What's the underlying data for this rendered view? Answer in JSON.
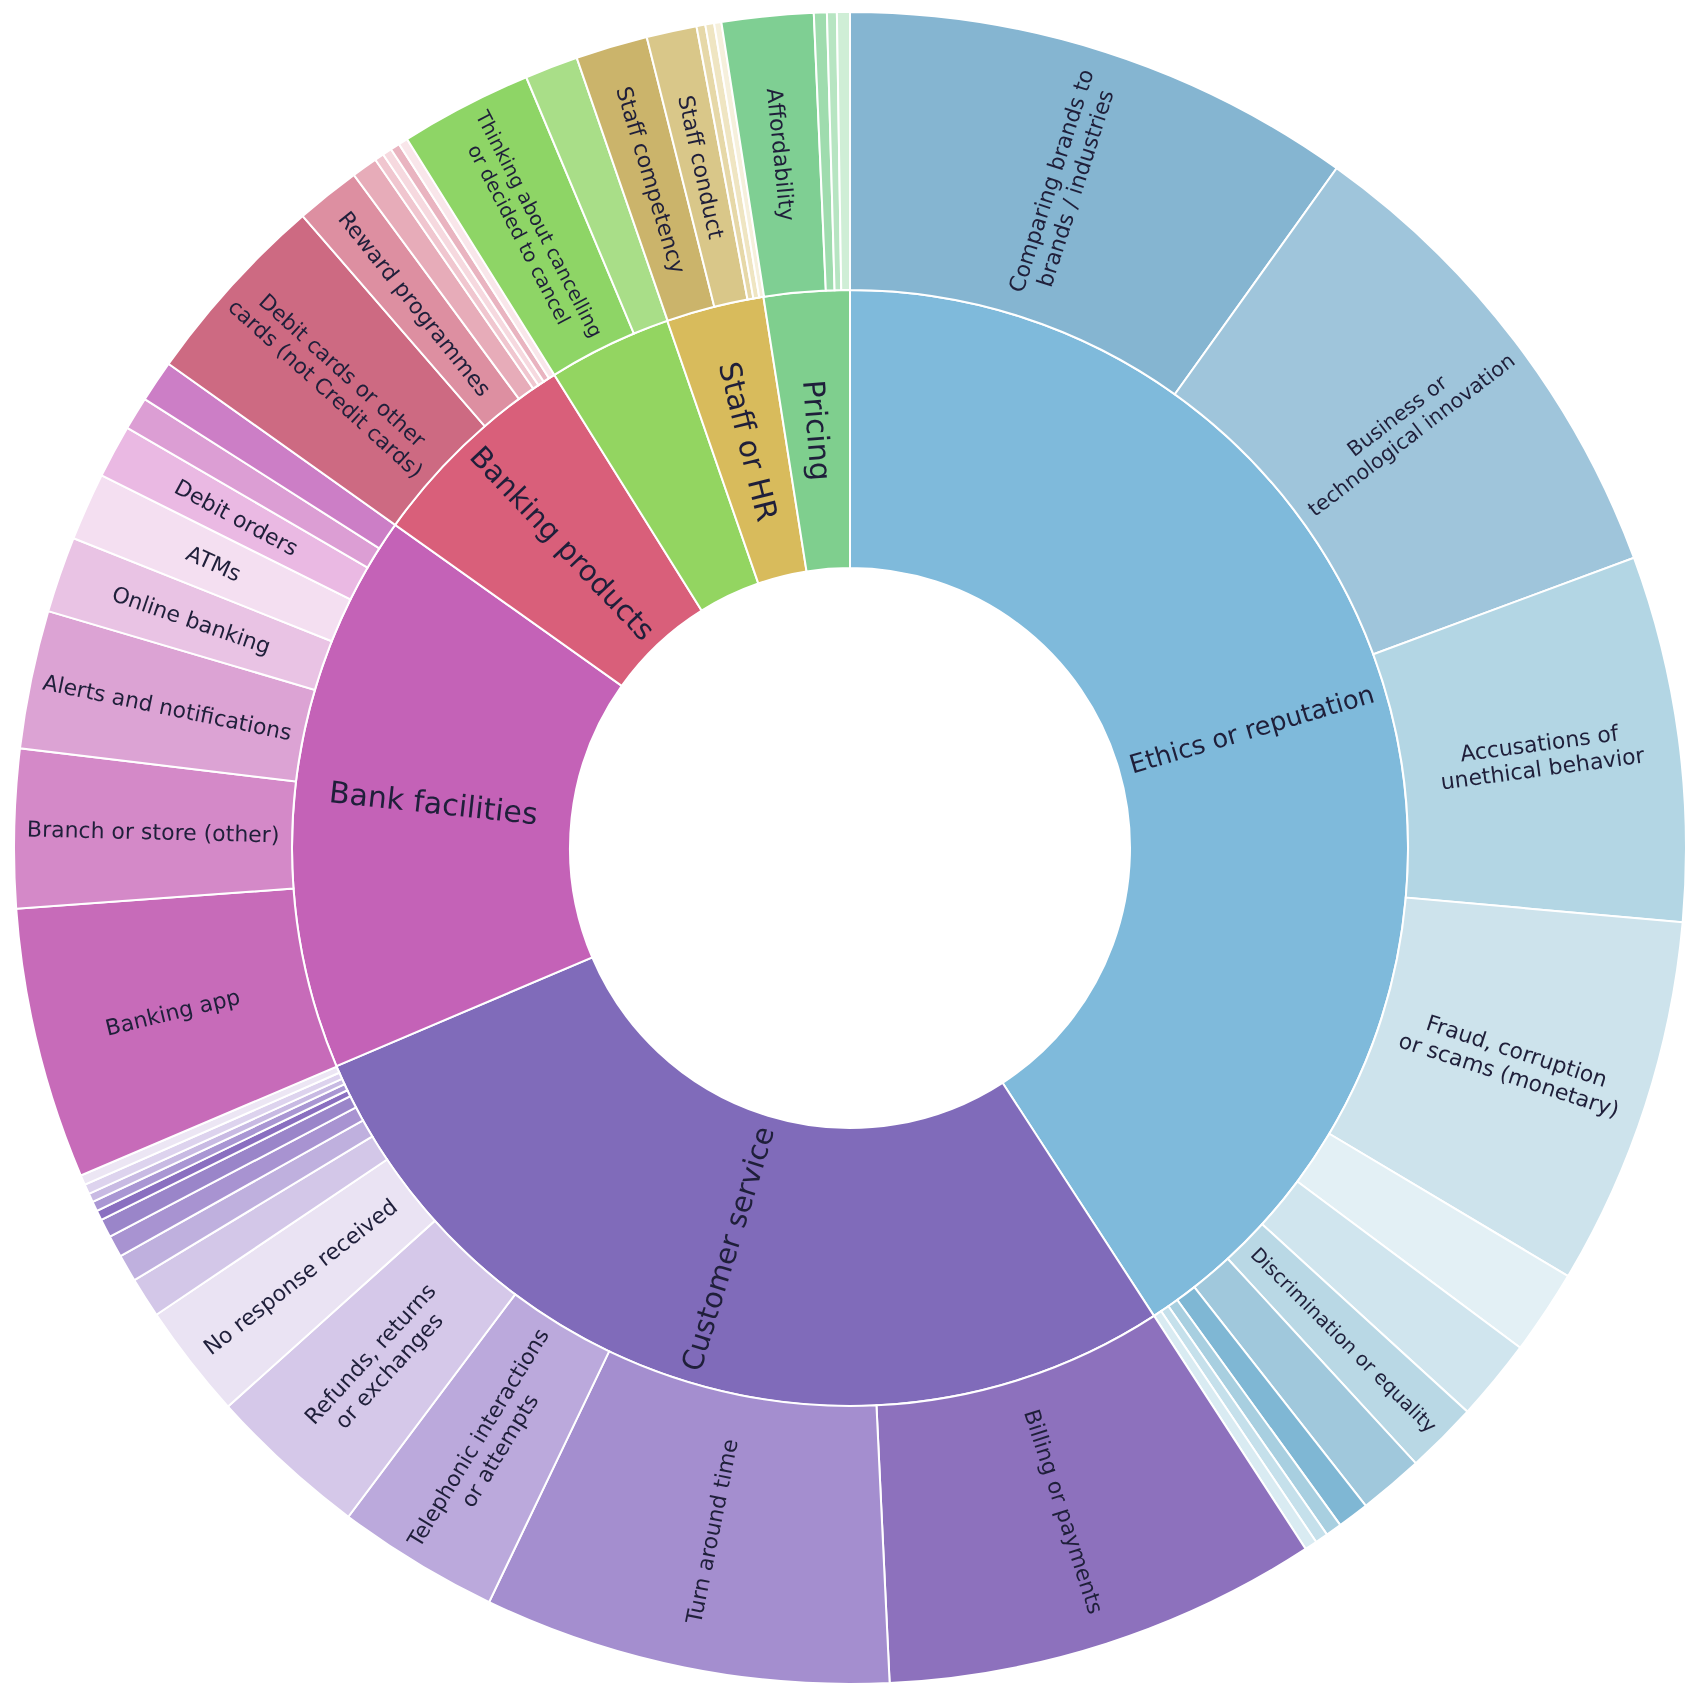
{
  "chart_data": [
    {
      "type": "donut",
      "categories": [
        "Ethics or reputation",
        "Customer service",
        "Bank facilities",
        "Banking products",
        null,
        "Staff or HR",
        "Pricing"
      ],
      "values": [
        40.83,
        27.78,
        16.22,
        6.28,
        3.58,
        2.83,
        2.48
      ],
      "colors": [
        "#7fbadb",
        "#806bba",
        "#c462b7",
        "#d95f7a",
        "#93d561",
        "#d8bb5c",
        "#7fcf8e"
      ]
    },
    {
      "type": "donut",
      "categories": [
        "Comparing brands to brands / industries",
        "Business or technological innovation",
        "Accusations of unethical behavior",
        "Fraud, corruption or scams (monetary)",
        null,
        null,
        "Discrimination or equality",
        null,
        null,
        null,
        null,
        null,
        "Billing or payments",
        "Turn around time",
        "Telephonic interactions or attempts",
        "Refunds, returns or exchanges",
        "No response received",
        null,
        null,
        null,
        null,
        null,
        null,
        null,
        null,
        null,
        "Banking app",
        "Branch or store (other)",
        "Alerts and notifications",
        "Online banking",
        "ATMs",
        "Debit orders",
        null,
        null,
        "Debit cards or other cards (not Credit cards)",
        "Reward programmes",
        null,
        null,
        null,
        null,
        null,
        "Thinking about cancelling or decided to cancel",
        null,
        "Staff competency",
        "Staff conduct",
        null,
        null,
        null,
        "Affordability",
        null,
        null,
        null
      ],
      "values": [
        9.89,
        9.47,
        7.06,
        7.14,
        1.64,
        1.58,
        1.39,
        1.25,
        0.61,
        0.31,
        0.25,
        0.24,
        8.42,
        7.86,
        3.14,
        3.11,
        2.22,
        0.78,
        0.53,
        0.42,
        0.36,
        0.19,
        0.19,
        0.17,
        0.19,
        0.19,
        5.25,
        3.06,
        2.67,
        1.47,
        1.31,
        1.03,
        0.64,
        0.81,
        3.81,
        1.25,
        0.5,
        0.18,
        0.18,
        0.18,
        0.18,
        2.56,
        1.03,
        1.39,
        0.97,
        0.17,
        0.17,
        0.14,
        1.77,
        0.25,
        0.19,
        0.25
      ],
      "colors": [
        "#85b5d1",
        "#9fc5db",
        "#b3d6e4",
        "#cde3ec",
        "#e3f0f5",
        "#d0e5ee",
        "#b9d8e5",
        "#a0c8dc",
        "#7fb7d4",
        "#a8cfe0",
        "#c5e0eb",
        "#d9ebf2",
        "#8d71bd",
        "#a48ecf",
        "#bba9dc",
        "#d5c8e9",
        "#eae3f3",
        "#d3c7e8",
        "#bfb0de",
        "#a893d1",
        "#9a85c9",
        "#8a6fc0",
        "#a996d3",
        "#c8bae3",
        "#ddd3ee",
        "#ece6f4",
        "#c76bb9",
        "#d489c8",
        "#dca3d4",
        "#e9c3e4",
        "#f4dff1",
        "#eab9e3",
        "#dc9ed4",
        "#cc7ec6",
        "#cd6a82",
        "#dd8fa1",
        "#e7acb9",
        "#f0c6cf",
        "#f6d9df",
        "#e9b4c0",
        "#f9e6ea",
        "#8ed566",
        "#a9de88",
        "#cbb46b",
        "#d9c789",
        "#e6d8a8",
        "#efe5c2",
        "#f6f0dc",
        "#7fcf93",
        "#9fdcae",
        "#b7e5c2",
        "#cfeed6"
      ]
    }
  ]
}
